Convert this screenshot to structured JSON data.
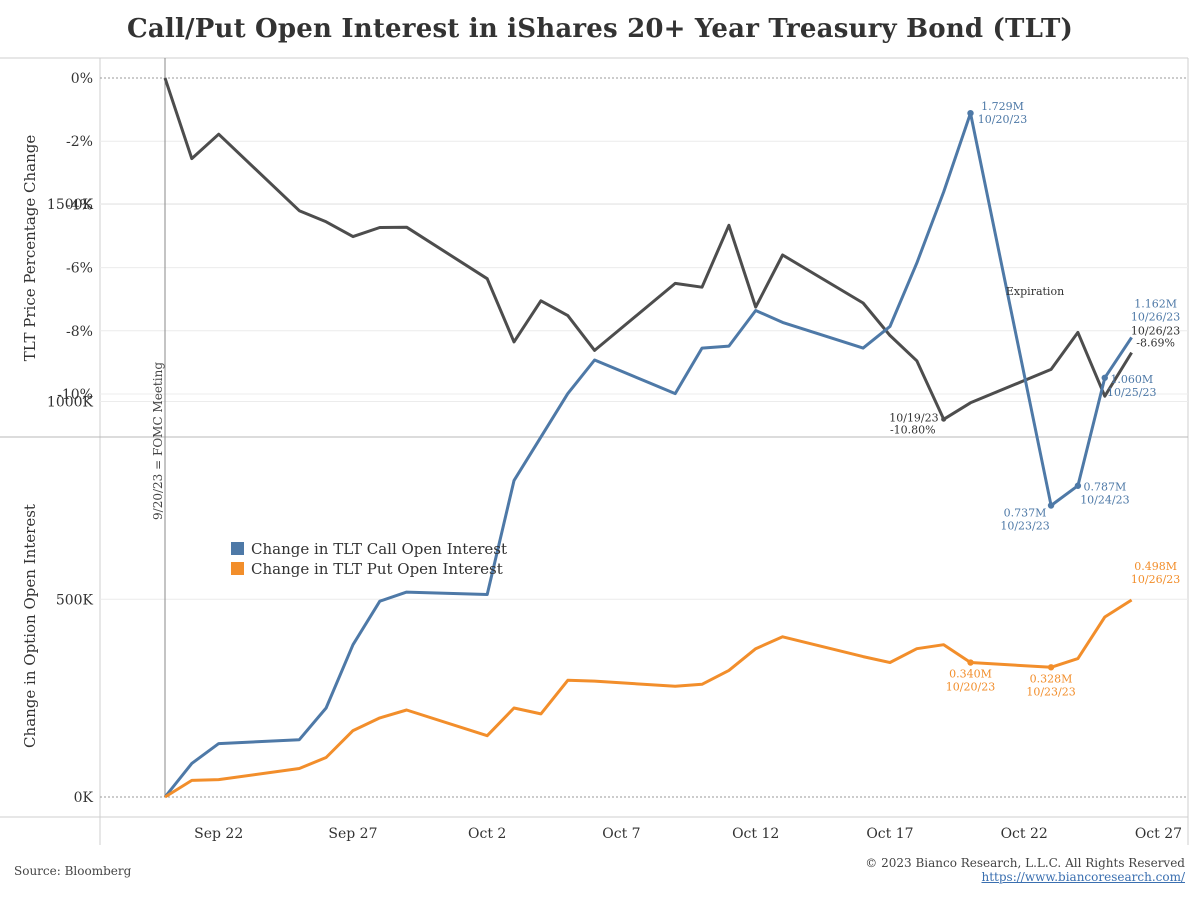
{
  "title": "Call/Put Open Interest in iShares 20+ Year Treasury Bond (TLT)",
  "footer": {
    "source": "Source: Bloomberg",
    "copyright": "© 2023 Bianco Research, L.L.C. All Rights Reserved",
    "url": "https://www.biancoresearch.com/"
  },
  "chart_data": [
    {
      "type": "line",
      "panel": "top",
      "ylabel": "TLT Price Percentage Change",
      "ylim": [
        -11.4,
        0.4
      ],
      "yticks": [
        0,
        -2,
        -4,
        -6,
        -8,
        -10
      ],
      "ytick_labels": [
        "0%",
        "-2%",
        "-4%",
        "-6%",
        "-8%",
        "-10%"
      ],
      "color": "#4d4d4d",
      "series": [
        {
          "name": "TLT Price Percentage Change",
          "x": [
            0,
            1,
            2,
            5,
            6,
            7,
            8,
            9,
            12,
            13,
            14,
            15,
            16,
            19,
            20,
            21,
            22,
            23,
            26,
            27,
            28,
            29,
            30,
            33,
            34,
            35,
            36
          ],
          "values": [
            0,
            -2.55,
            -1.78,
            -4.2,
            -4.55,
            -5.02,
            -4.73,
            -4.72,
            -6.35,
            -8.35,
            -7.05,
            -7.52,
            -8.62,
            -6.5,
            -6.62,
            -4.66,
            -7.25,
            -5.6,
            -7.12,
            -8.15,
            -8.95,
            -10.8,
            -10.28,
            -9.22,
            -8.05,
            -10.07,
            -8.69
          ]
        }
      ],
      "annotations": [
        {
          "x": 29,
          "y": -10.8,
          "text": [
            "10/19/23",
            "-10.80%"
          ],
          "anchor": "below-left"
        },
        {
          "x": 36,
          "y": -8.69,
          "text": [
            "10/26/23",
            "-8.69%"
          ],
          "anchor": "above-right"
        }
      ]
    },
    {
      "type": "line",
      "panel": "bottom",
      "ylabel": "Change in Option Open Interest",
      "ylim": [
        -100,
        1850
      ],
      "yticks": [
        0,
        500,
        1000,
        1500
      ],
      "ytick_labels": [
        "0K",
        "500K",
        "1000K",
        "1500K"
      ],
      "xticks": [
        2,
        7,
        12,
        17,
        22,
        27,
        32,
        37
      ],
      "xtick_labels": [
        "Sep 22",
        "Sep 27",
        "Oct 2",
        "Oct 7",
        "Oct 12",
        "Oct 17",
        "Oct 22",
        "Oct 27"
      ],
      "series": [
        {
          "name": "Change in TLT Call Open Interest",
          "color": "#4e79a7",
          "x": [
            0,
            1,
            2,
            5,
            6,
            7,
            8,
            9,
            12,
            13,
            14,
            15,
            16,
            19,
            20,
            21,
            22,
            23,
            26,
            27,
            28,
            29,
            30,
            33,
            34,
            35,
            36
          ],
          "values": [
            0,
            85,
            135,
            145,
            225,
            385,
            495,
            518,
            512,
            800,
            910,
            1020,
            1105,
            1020,
            1135,
            1140,
            1230,
            1200,
            1135,
            1190,
            1350,
            1530,
            1729,
            737,
            787,
            1060,
            1162
          ]
        },
        {
          "name": "Change in TLT Put Open Interest",
          "color": "#f28e2b",
          "x": [
            0,
            1,
            2,
            5,
            6,
            7,
            8,
            9,
            12,
            13,
            14,
            15,
            16,
            19,
            20,
            21,
            22,
            23,
            26,
            27,
            28,
            29,
            30,
            33,
            34,
            35,
            36
          ],
          "values": [
            0,
            42,
            44,
            72,
            100,
            168,
            200,
            220,
            155,
            225,
            210,
            295,
            293,
            280,
            285,
            320,
            375,
            405,
            355,
            340,
            375,
            385,
            340,
            328,
            350,
            455,
            498
          ]
        }
      ],
      "annotations": [
        {
          "series": 0,
          "x": 30,
          "y": 1729,
          "text": [
            "1.729M",
            "10/20/23"
          ],
          "anchor": "right",
          "marker": true
        },
        {
          "series": 0,
          "x": 36,
          "y": 1162,
          "text": [
            "1.162M",
            "10/26/23"
          ],
          "anchor": "above-right",
          "marker": false
        },
        {
          "series": 0,
          "x": 35,
          "y": 1060,
          "text": [
            "1.060M",
            "10/25/23"
          ],
          "anchor": "below-right",
          "marker": true
        },
        {
          "series": 0,
          "x": 34,
          "y": 787,
          "text": [
            "0.787M",
            "10/24/23"
          ],
          "anchor": "below-right",
          "marker": true
        },
        {
          "series": 0,
          "x": 33,
          "y": 737,
          "text": [
            "0.737M",
            "10/23/23"
          ],
          "anchor": "below-left",
          "marker": true
        },
        {
          "series": 1,
          "x": 36,
          "y": 498,
          "text": [
            "0.498M",
            "10/26/23"
          ],
          "anchor": "above-right",
          "marker": false
        },
        {
          "series": 1,
          "x": 30,
          "y": 340,
          "text": [
            "0.340M",
            "10/20/23"
          ],
          "anchor": "below",
          "marker": true
        },
        {
          "series": 1,
          "x": 33,
          "y": 328,
          "text": [
            "0.328M",
            "10/23/23"
          ],
          "anchor": "below",
          "marker": true
        }
      ],
      "text_annotation": {
        "x": 33,
        "y": 1280,
        "text": "Expiration"
      },
      "legend": {
        "placement": "middle-left"
      }
    }
  ],
  "event_line": {
    "x": 0,
    "label": "9/20/23 = FOMC Meeting"
  }
}
